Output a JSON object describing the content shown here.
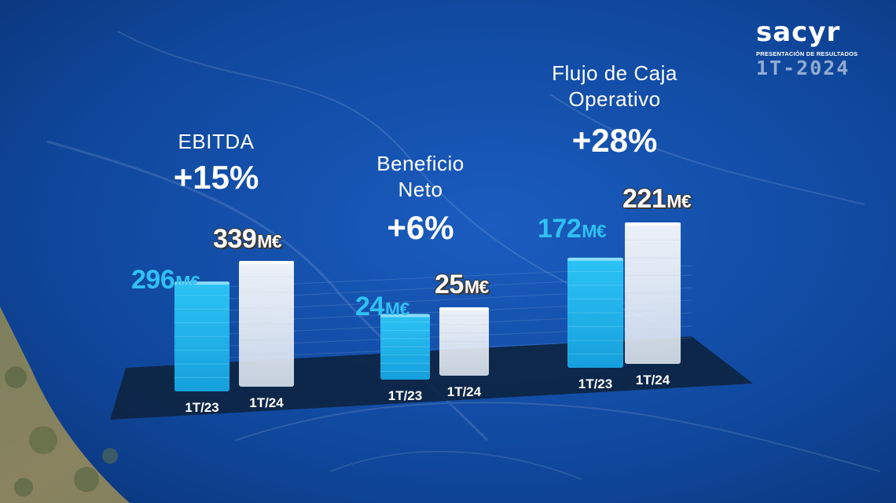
{
  "brand": {
    "logo": "sacyr",
    "subtitle": "PRESENTACIÓN DE RESULTADOS",
    "period": "1T-2024"
  },
  "colors": {
    "background": "#0b3f8f",
    "prev_bar": "#1fb5ea",
    "curr_bar": "#eef3f8",
    "prev_label": "#2fc1f3",
    "platform": "#0d2340"
  },
  "chart_data": [
    {
      "type": "bar",
      "title": "EBITDA",
      "change": "+15%",
      "categories": [
        "1T/23",
        "1T/24"
      ],
      "values": [
        296,
        339
      ],
      "value_labels": [
        "296",
        "339"
      ],
      "unit": "M€"
    },
    {
      "type": "bar",
      "title": "Beneficio Neto",
      "title_lines": [
        "Beneficio",
        "Neto"
      ],
      "change": "+6%",
      "categories": [
        "1T/23",
        "1T/24"
      ],
      "values": [
        24,
        25
      ],
      "value_labels": [
        "24",
        "25"
      ],
      "unit": "M€"
    },
    {
      "type": "bar",
      "title": "Flujo de Caja Operativo",
      "title_lines": [
        "Flujo de Caja",
        "Operativo"
      ],
      "change": "+28%",
      "categories": [
        "1T/23",
        "1T/24"
      ],
      "values": [
        172,
        221
      ],
      "value_labels": [
        "172",
        "221"
      ],
      "unit": "M€"
    }
  ]
}
